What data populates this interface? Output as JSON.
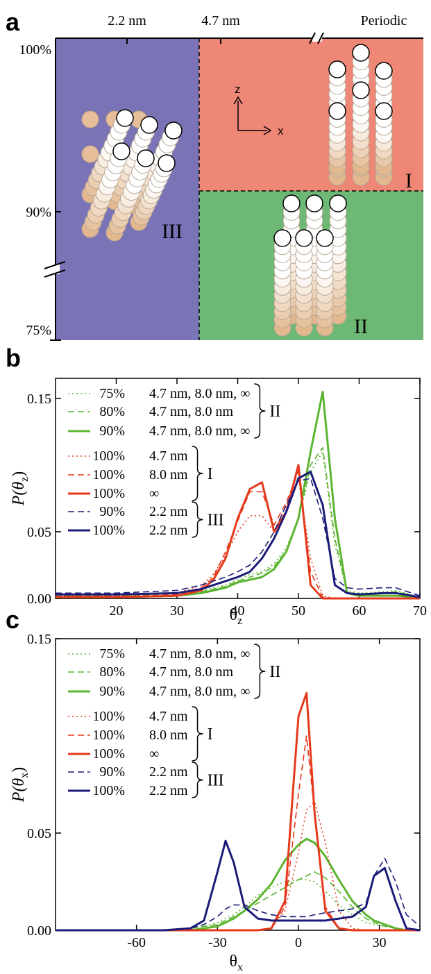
{
  "panel_a": {
    "label": "a",
    "top_labels": [
      "2.2 nm",
      "4.7 nm",
      "Periodic"
    ],
    "left_labels": [
      "100%",
      "90%",
      "75%"
    ],
    "regions": [
      "III",
      "I",
      "II"
    ],
    "axes": [
      "z",
      "x"
    ]
  },
  "chart_data": [
    {
      "type": "line",
      "label": "b",
      "ylabel": [
        "P(θ",
        "z",
        ")"
      ],
      "xlabel": [
        "θ",
        "z"
      ],
      "xlim": [
        10,
        70
      ],
      "ylim": [
        0,
        0.165
      ],
      "xticks": [
        20,
        30,
        40,
        50,
        60,
        70
      ],
      "yticks": [
        {
          "value": 0,
          "label": "0.00"
        },
        0.05,
        0.15
      ],
      "x": [
        10,
        20,
        30,
        34,
        36,
        38,
        40,
        42,
        44,
        46,
        48,
        50,
        52,
        54,
        56,
        58,
        60,
        64,
        66,
        70
      ],
      "series": [
        {
          "name": "75%",
          "size": "4.7 nm, 8.0 nm, ∞",
          "group": "II",
          "color": "#5cb531",
          "style": "dotted",
          "values": [
            0.003,
            0.003,
            0.004,
            0.006,
            0.008,
            0.01,
            0.014,
            0.018,
            0.02,
            0.026,
            0.038,
            0.06,
            0.095,
            0.11,
            0.04,
            0.006,
            0.004,
            0.005,
            0.006,
            0.001
          ]
        },
        {
          "name": "80%",
          "size": "4.7 nm, 8.0 nm",
          "group": "II",
          "color": "#5cb531",
          "style": "dashed",
          "values": [
            0.002,
            0.002,
            0.003,
            0.005,
            0.007,
            0.009,
            0.013,
            0.016,
            0.019,
            0.024,
            0.036,
            0.06,
            0.1,
            0.113,
            0.045,
            0.005,
            0.003,
            0.004,
            0.005,
            0.001
          ]
        },
        {
          "name": "90%",
          "size": "4.7 nm, 8.0 nm, ∞",
          "group": "II",
          "color": "#5cb531",
          "style": "solid",
          "values": [
            0.001,
            0.001,
            0.002,
            0.004,
            0.006,
            0.008,
            0.012,
            0.014,
            0.016,
            0.022,
            0.035,
            0.06,
            0.11,
            0.155,
            0.06,
            0.004,
            0.002,
            0.002,
            0.002,
            0.001
          ]
        },
        {
          "name": "100%",
          "size": "4.7 nm",
          "group": "I",
          "color": "#e5391c",
          "style": "dotted",
          "values": [
            0.002,
            0.002,
            0.004,
            0.01,
            0.018,
            0.032,
            0.05,
            0.062,
            0.062,
            0.05,
            0.07,
            0.09,
            0.03,
            0.002,
            0,
            0,
            0,
            0,
            0,
            0
          ]
        },
        {
          "name": "100%",
          "size": "8.0 nm",
          "group": "I",
          "color": "#e5391c",
          "style": "dashed",
          "values": [
            0.001,
            0.001,
            0.003,
            0.008,
            0.016,
            0.035,
            0.058,
            0.08,
            0.08,
            0.055,
            0.072,
            0.095,
            0.02,
            0.001,
            0,
            0,
            0,
            0,
            0,
            0
          ]
        },
        {
          "name": "100%",
          "size": "∞",
          "group": "I",
          "color": "#e5391c",
          "style": "solid",
          "values": [
            0.001,
            0.001,
            0.002,
            0.006,
            0.014,
            0.03,
            0.06,
            0.082,
            0.087,
            0.05,
            0.065,
            0.1,
            0.01,
            0,
            0,
            0,
            0,
            0,
            0,
            0
          ]
        },
        {
          "name": "90%",
          "size": "2.2 nm",
          "group": "III",
          "color": "#1b1b78",
          "style": "dashed",
          "values": [
            0.004,
            0.004,
            0.006,
            0.01,
            0.013,
            0.016,
            0.02,
            0.025,
            0.035,
            0.05,
            0.07,
            0.088,
            0.09,
            0.06,
            0.015,
            0.008,
            0.007,
            0.008,
            0.008,
            0.002
          ]
        },
        {
          "name": "100%",
          "size": "2.2 nm",
          "group": "III",
          "color": "#1b1b78",
          "style": "solid",
          "values": [
            0.003,
            0.003,
            0.004,
            0.007,
            0.01,
            0.013,
            0.016,
            0.02,
            0.03,
            0.045,
            0.065,
            0.09,
            0.095,
            0.07,
            0.01,
            0.004,
            0.003,
            0.004,
            0.004,
            0.001
          ]
        }
      ]
    },
    {
      "type": "line",
      "label": "c",
      "ylabel": [
        "P(θ",
        "x",
        ")"
      ],
      "xlabel": [
        "θ",
        "x"
      ],
      "xlim": [
        -90,
        45
      ],
      "ylim": [
        0,
        0.15
      ],
      "xticks": [
        -60,
        -30,
        0,
        30
      ],
      "yticks": [
        {
          "value": 0,
          "label": "0.00"
        },
        0.05,
        0.15
      ],
      "x": [
        -90,
        -50,
        -40,
        -35,
        -30,
        -27,
        -24,
        -20,
        -15,
        -10,
        -5,
        0,
        3,
        6,
        10,
        15,
        20,
        25,
        28,
        32,
        36,
        40,
        45
      ],
      "series": [
        {
          "name": "75%",
          "size": "4.7 nm, 8.0 nm, ∞",
          "group": "II",
          "color": "#5cb531",
          "style": "dotted",
          "values": [
            0,
            0,
            0.001,
            0.002,
            0.004,
            0.006,
            0.008,
            0.012,
            0.018,
            0.022,
            0.025,
            0.026,
            0.026,
            0.025,
            0.02,
            0.013,
            0.008,
            0.004,
            0.003,
            0.002,
            0.001,
            0,
            0
          ]
        },
        {
          "name": "80%",
          "size": "4.7 nm, 8.0 nm",
          "group": "II",
          "color": "#5cb531",
          "style": "dashed",
          "values": [
            0,
            0,
            0.001,
            0.002,
            0.003,
            0.005,
            0.007,
            0.01,
            0.014,
            0.018,
            0.022,
            0.026,
            0.028,
            0.03,
            0.027,
            0.02,
            0.012,
            0.006,
            0.004,
            0.002,
            0.001,
            0,
            0
          ]
        },
        {
          "name": "90%",
          "size": "4.7 nm, 8.0 nm, ∞",
          "group": "II",
          "color": "#5cb531",
          "style": "solid",
          "values": [
            0,
            0,
            0,
            0.001,
            0.002,
            0.004,
            0.006,
            0.01,
            0.016,
            0.024,
            0.036,
            0.044,
            0.047,
            0.045,
            0.038,
            0.026,
            0.015,
            0.008,
            0.005,
            0.003,
            0.001,
            0,
            0
          ]
        },
        {
          "name": "100%",
          "size": "4.7 nm",
          "group": "I",
          "color": "#e5391c",
          "style": "dotted",
          "values": [
            0,
            0,
            0,
            0,
            0,
            0,
            0,
            0,
            0,
            0.001,
            0.01,
            0.04,
            0.062,
            0.066,
            0.045,
            0.01,
            0.001,
            0,
            0,
            0,
            0,
            0,
            0
          ]
        },
        {
          "name": "100%",
          "size": "8.0 nm",
          "group": "I",
          "color": "#e5391c",
          "style": "dashed",
          "values": [
            0,
            0,
            0,
            0,
            0,
            0,
            0,
            0,
            0,
            0.001,
            0.012,
            0.07,
            0.1,
            0.06,
            0.012,
            0.001,
            0,
            0,
            0,
            0,
            0,
            0,
            0
          ]
        },
        {
          "name": "100%",
          "size": "∞",
          "group": "I",
          "color": "#e5391c",
          "style": "solid",
          "values": [
            0,
            0,
            0,
            0,
            0,
            0,
            0,
            0,
            0,
            0.001,
            0.015,
            0.11,
            0.122,
            0.06,
            0.01,
            0.001,
            0,
            0,
            0,
            0,
            0,
            0,
            0
          ]
        },
        {
          "name": "90%",
          "size": "2.2 nm",
          "group": "III",
          "color": "#1b1b78",
          "style": "dashed",
          "values": [
            0,
            0,
            0.001,
            0.003,
            0.007,
            0.011,
            0.013,
            0.013,
            0.01,
            0.008,
            0.007,
            0.007,
            0.007,
            0.008,
            0.009,
            0.01,
            0.011,
            0.014,
            0.028,
            0.037,
            0.025,
            0.008,
            0.002
          ]
        },
        {
          "name": "100%",
          "size": "2.2 nm",
          "group": "III",
          "color": "#1b1b78",
          "style": "solid",
          "values": [
            0,
            0,
            0.001,
            0.005,
            0.03,
            0.046,
            0.035,
            0.012,
            0.006,
            0.005,
            0.005,
            0.005,
            0.005,
            0.005,
            0.005,
            0.006,
            0.007,
            0.012,
            0.028,
            0.032,
            0.015,
            0.001,
            0
          ]
        }
      ]
    }
  ]
}
